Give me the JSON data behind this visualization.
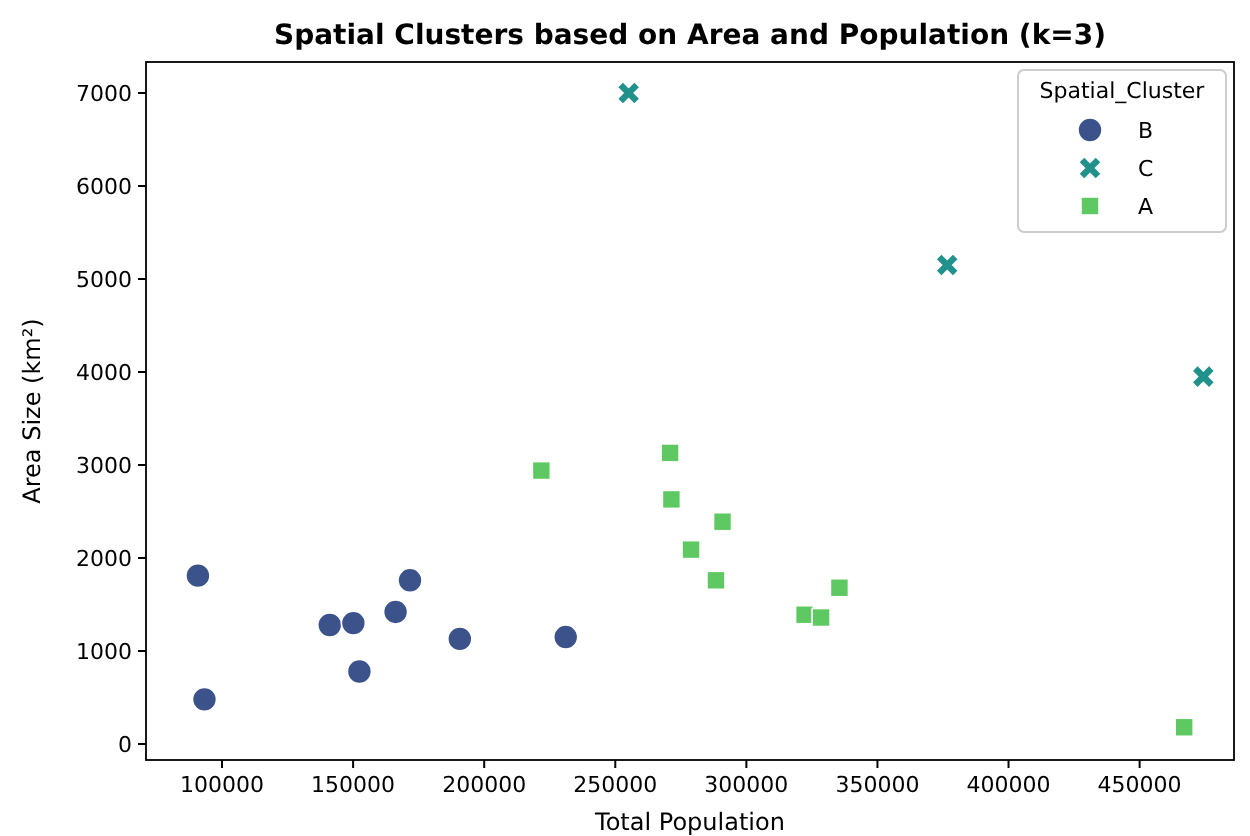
{
  "chart_data": {
    "type": "scatter",
    "title": "Spatial Clusters based on Area and Population (k=3)",
    "xlabel": "Total Population",
    "ylabel": "Area Size (km²)",
    "legend_title": "Spatial_Cluster",
    "legend": "top right",
    "grid": false,
    "xlim": [
      71000,
      486000
    ],
    "xticks": [
      100000,
      150000,
      200000,
      250000,
      300000,
      350000,
      400000,
      450000
    ],
    "ylim": [
      -172,
      7333
    ],
    "yticks": [
      0,
      1000,
      2000,
      3000,
      4000,
      5000,
      6000,
      7000
    ],
    "series": [
      {
        "name": "B",
        "color": "#3b528b",
        "marker": "circle",
        "x": [
          90800,
          93300,
          141100,
          150100,
          152400,
          166200,
          171700,
          190700,
          231100
        ],
        "values": [
          1810,
          480,
          1280,
          1300,
          780,
          1420,
          1760,
          1130,
          1150
        ]
      },
      {
        "name": "C",
        "color": "#21918c",
        "marker": "cross",
        "x": [
          255100,
          376600,
          474300
        ],
        "values": [
          7000,
          5150,
          3950
        ]
      },
      {
        "name": "A",
        "color": "#5ec962",
        "marker": "square",
        "x": [
          221800,
          270900,
          271400,
          278900,
          290900,
          288400,
          322200,
          328500,
          335500,
          467000
        ],
        "values": [
          2940,
          3130,
          2630,
          2090,
          2390,
          1760,
          1390,
          1360,
          1680,
          180
        ]
      }
    ]
  }
}
